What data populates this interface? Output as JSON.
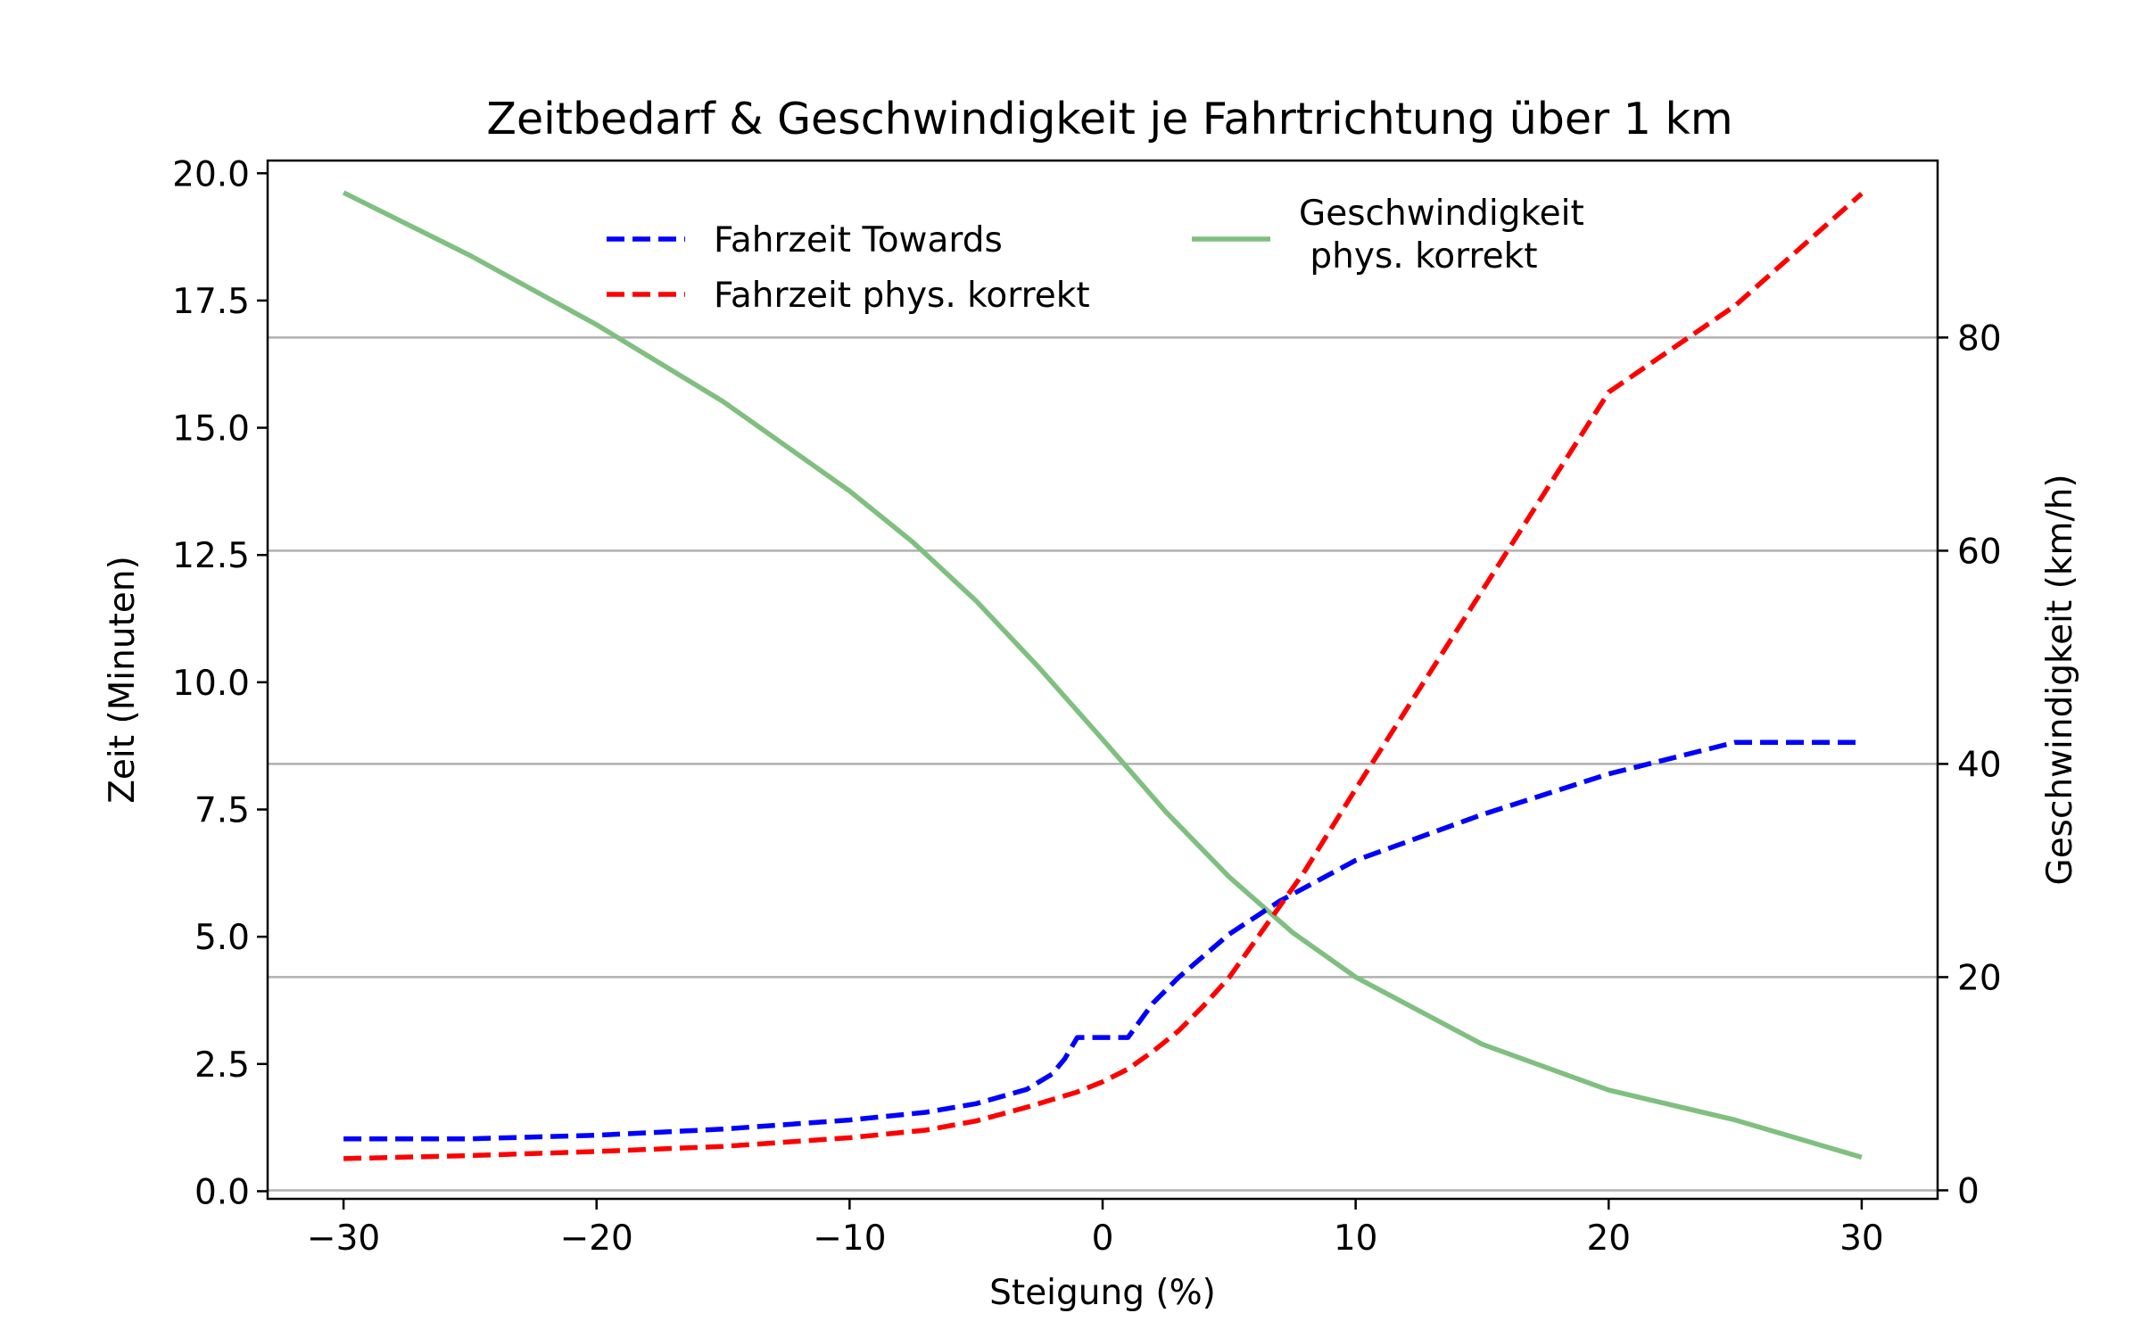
{
  "chart_data": {
    "type": "line",
    "title": "Zeitbedarf & Geschwindigkeit je Fahrtrichtung über 1 km",
    "xlabel": "Steigung (%)",
    "ylabel": "Zeit (Minuten)",
    "y2label": "Geschwindigkeit (km/h)",
    "xlim": [
      -33,
      33
    ],
    "ylim": [
      -0.15,
      20.25
    ],
    "y2lim": [
      -0.8,
      96.6
    ],
    "xticks": [
      -30,
      -20,
      -10,
      0,
      10,
      20,
      30
    ],
    "xtick_labels": [
      "−30",
      "−20",
      "−10",
      "0",
      "10",
      "20",
      "30"
    ],
    "yticks": [
      0,
      2.5,
      5,
      7.5,
      10,
      12.5,
      15,
      17.5,
      20
    ],
    "ytick_labels": [
      "0.0",
      "2.5",
      "5.0",
      "7.5",
      "10.0",
      "12.5",
      "15.0",
      "17.5",
      "20.0"
    ],
    "y2ticks": [
      0,
      20,
      40,
      60,
      80
    ],
    "y2tick_labels": [
      "0",
      "20",
      "40",
      "60",
      "80"
    ],
    "grid": "horizontal lines on right axis",
    "series": [
      {
        "name": "Fahrzeit Towards",
        "axis": "left",
        "style": "dashed",
        "color": "#0000ff",
        "x": [
          -30,
          -25,
          -20,
          -15,
          -10,
          -7,
          -5,
          -3,
          -2,
          -1.5,
          -1,
          1,
          2,
          3,
          5,
          7,
          10,
          15,
          20,
          25,
          30
        ],
        "y": [
          1.03,
          1.03,
          1.1,
          1.22,
          1.4,
          1.55,
          1.72,
          2.0,
          2.3,
          2.6,
          3.02,
          3.02,
          3.7,
          4.2,
          5.05,
          5.7,
          6.5,
          7.4,
          8.2,
          8.82,
          8.82
        ]
      },
      {
        "name": "Fahrzeit phys. korrekt",
        "axis": "left",
        "style": "dashed",
        "color": "#ff0000",
        "x": [
          -30,
          -25,
          -20,
          -15,
          -10,
          -7,
          -5,
          -3,
          -1,
          0,
          1,
          2,
          3,
          4,
          5,
          6,
          8,
          10,
          15,
          20,
          25,
          30
        ],
        "y": [
          0.64,
          0.7,
          0.78,
          0.88,
          1.05,
          1.2,
          1.38,
          1.65,
          1.95,
          2.15,
          2.4,
          2.75,
          3.15,
          3.65,
          4.2,
          4.9,
          6.3,
          7.9,
          11.8,
          15.7,
          17.4,
          19.6
        ]
      },
      {
        "name": "Geschwindigkeit\n phys. korrekt",
        "legend_lines": [
          "Geschwindigkeit",
          " phys. korrekt"
        ],
        "axis": "right",
        "style": "solid",
        "color": "#7fbf7f",
        "x": [
          -30,
          -25,
          -20,
          -15,
          -10,
          -7.5,
          -5,
          -2.5,
          0,
          2.5,
          5,
          7.5,
          10,
          15,
          20,
          25,
          30
        ],
        "y": [
          93.6,
          87.7,
          81.2,
          74.0,
          65.6,
          60.8,
          55.3,
          49.0,
          42.3,
          35.5,
          29.4,
          24.2,
          20.0,
          13.7,
          9.4,
          6.6,
          3.1
        ]
      }
    ],
    "legend_placement": "upper-center"
  }
}
